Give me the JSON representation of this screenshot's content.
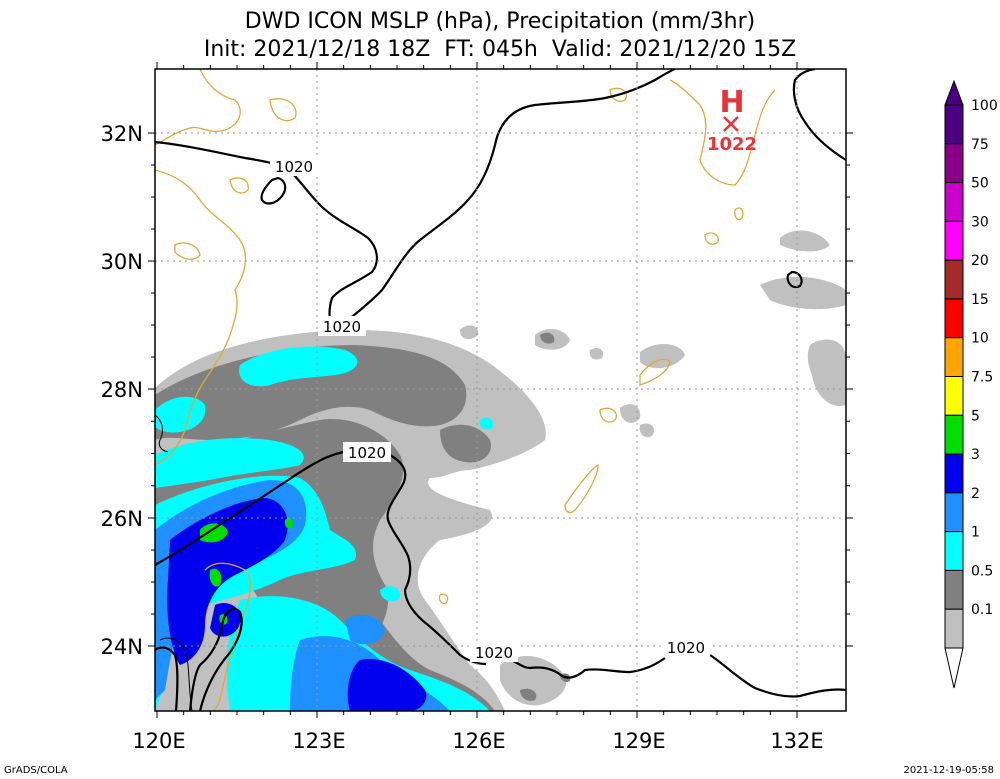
{
  "title_line1": "DWD ICON MSLP (hPa), Precipitation (mm/3hr)",
  "title_line2": "Init: 2021/12/18 18Z  FT: 045h  Valid: 2021/12/20 15Z",
  "x_ticks": [
    "120E",
    "123E",
    "126E",
    "129E",
    "132E"
  ],
  "y_ticks": [
    "32N",
    "30N",
    "28N",
    "26N",
    "24N"
  ],
  "isobar_labels": [
    "1020",
    "1020",
    "1020",
    "1020",
    "1020"
  ],
  "high_center": {
    "symbol": "H",
    "value": "1022"
  },
  "colorbar": {
    "levels": [
      "100",
      "75",
      "50",
      "30",
      "20",
      "15",
      "10",
      "7.5",
      "5",
      "3",
      "2",
      "1",
      "0.5",
      "0.1"
    ],
    "colors": [
      "#4b0082",
      "#8b008b",
      "#cc00cc",
      "#ff00ff",
      "#a52a2a",
      "#ff0000",
      "#ffa500",
      "#ffff00",
      "#00dd00",
      "#0000ee",
      "#1e90ff",
      "#00ffff",
      "#808080",
      "#c0c0c0"
    ]
  },
  "footer_left": "GrADS/COLA",
  "footer_right": "2021-12-19-05:58"
}
